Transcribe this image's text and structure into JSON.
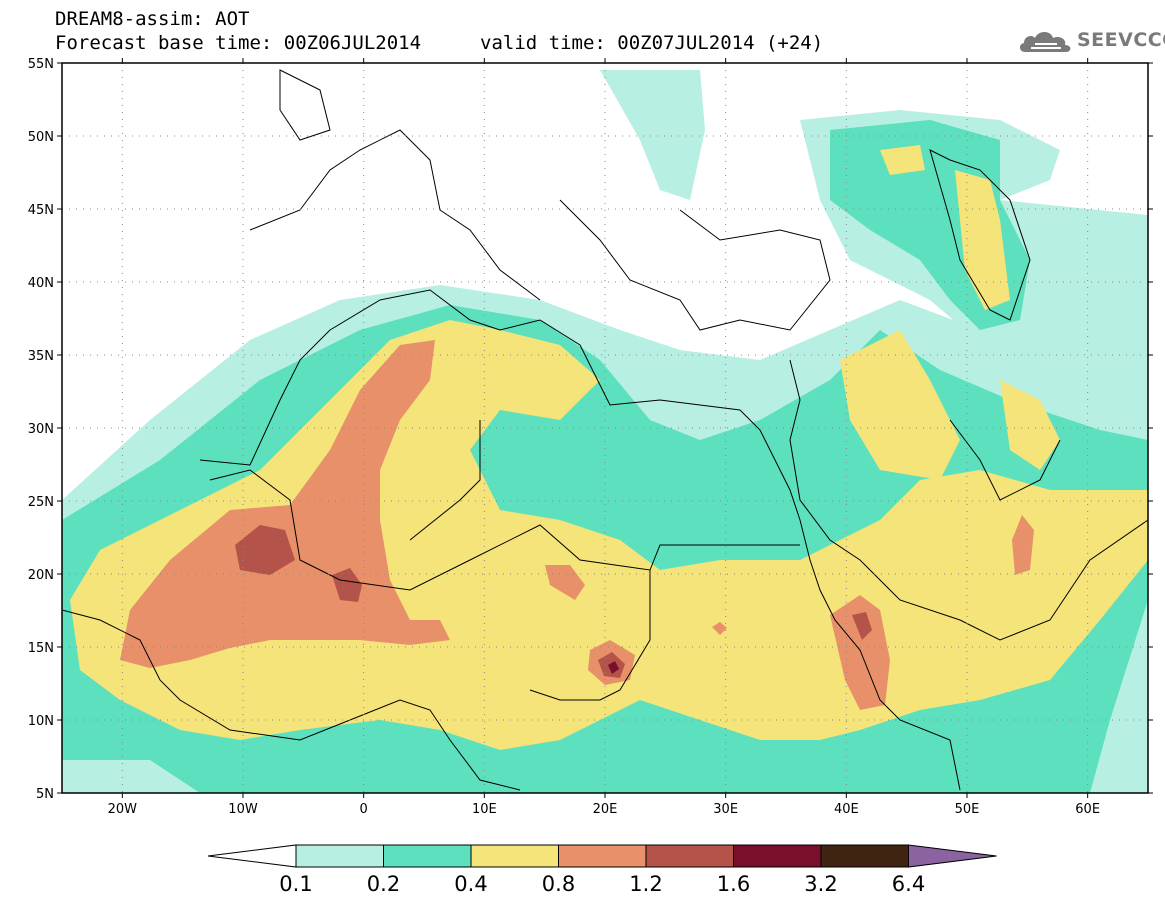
{
  "header": {
    "title": "DREAM8-assim: AOT",
    "base_time": "Forecast base time: 00Z06JUL2014",
    "valid_time": "valid time: 00Z07JUL2014 (+24)"
  },
  "logo": {
    "text": "SEEVCCC",
    "icon": "cloud-icon"
  },
  "map": {
    "lon_range": [
      -25,
      65
    ],
    "lat_range": [
      5,
      55
    ],
    "lat_ticks": [
      "55N",
      "50N",
      "45N",
      "40N",
      "35N",
      "30N",
      "25N",
      "20N",
      "15N",
      "10N",
      "5N"
    ],
    "lon_ticks": [
      "20W",
      "10W",
      "0",
      "10E",
      "20E",
      "30E",
      "40E",
      "50E",
      "60E"
    ],
    "grid": "dotted"
  },
  "colorbar": {
    "labels": [
      "0.1",
      "0.2",
      "0.4",
      "0.8",
      "1.2",
      "1.6",
      "3.2",
      "6.4"
    ],
    "colors": [
      "#ffffff",
      "#b7efe3",
      "#5de0bd",
      "#f5e47a",
      "#e8906a",
      "#b3534a",
      "#7a0f2c",
      "#3f2412",
      "#8a63a0"
    ]
  },
  "colors": {
    "c1": "#b7efe3",
    "c2": "#5de0bd",
    "c3": "#f5e47a",
    "c4": "#e8906a",
    "c5": "#b3534a",
    "c6": "#7a0f2c"
  }
}
